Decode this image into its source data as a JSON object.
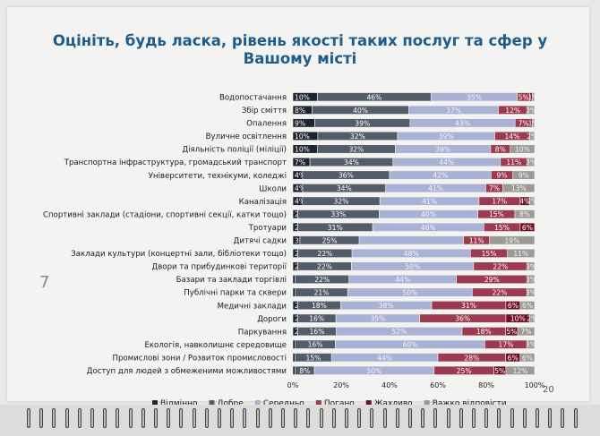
{
  "page": {
    "title": "Оцініть, будь ласка, рівень якості таких послуг та сфер у Вашому місті",
    "page_number": "20",
    "margin_mark": "7"
  },
  "colors": {
    "excellent": "#1e2430",
    "good": "#535d6a",
    "average": "#a9b1d5",
    "bad": "#9b3a50",
    "terrible": "#6e1226",
    "hard_to_say": "#9b9a98"
  },
  "chart_data": {
    "type": "bar",
    "orientation": "horizontal",
    "stacked": "percent",
    "title": "Оцініть, будь ласка, рівень якості таких послуг та сфер у Вашому місті",
    "xlim": [
      0,
      100
    ],
    "x_ticks": [
      "0%",
      "20%",
      "40%",
      "60%",
      "80%",
      "100%"
    ],
    "legend_position": "bottom",
    "categories": [
      "Водопостачання",
      "Збір сміття",
      "Опалення",
      "Вуличне освітлення",
      "Діяльність поліції (міліції)",
      "Транспортна інфраструктура, громадський транспорт",
      "Університети, технікуми, коледжі",
      "Школи",
      "Каналізація",
      "Спортивні заклади (стадіони, спортивні секції, катки тощо)",
      "Тротуари",
      "Дитячі садки",
      "Заклади культури (концертні зали, бібліотеки тощо)",
      "Двори та прибудинкові території",
      "Базари та заклади торгівлі",
      "Публічні парки та сквери",
      "Медичні заклади",
      "Дороги",
      "Паркування",
      "Екологія, навколишнє середовище",
      "Промислові зони / Розвиток промисловості",
      "Доступ для людей з обмеженими можливостями"
    ],
    "series": [
      {
        "name": "Відмінно",
        "color_key": "excellent",
        "values": [
          10,
          8,
          9,
          10,
          10,
          7,
          4,
          4,
          4,
          2,
          2,
          3,
          2,
          2,
          1,
          1,
          2,
          2,
          2,
          1,
          1,
          1
        ],
        "labels": [
          "10%",
          "8%",
          "9%",
          "10%",
          "10%",
          "7%",
          "4%",
          "4%",
          "4%",
          "2%",
          "2%",
          "3%",
          "2%",
          "2%",
          "1%",
          "1%",
          "2%",
          "2%",
          "2%",
          "1%",
          "1%",
          "1%"
        ]
      },
      {
        "name": "Добре",
        "color_key": "good",
        "values": [
          46,
          40,
          39,
          32,
          32,
          34,
          36,
          34,
          32,
          33,
          31,
          25,
          22,
          22,
          22,
          21,
          18,
          16,
          16,
          16,
          15,
          8
        ],
        "labels": [
          "46%",
          "40%",
          "39%",
          "32%",
          "32%",
          "34%",
          "36%",
          "34%",
          "32%",
          "33%",
          "31%",
          "25%",
          "22%",
          "22%",
          "22%",
          "21%",
          "18%",
          "16%",
          "16%",
          "16%",
          "15%",
          "8%"
        ]
      },
      {
        "name": "Середньо",
        "color_key": "average",
        "values": [
          35,
          37,
          43,
          39,
          39,
          44,
          42,
          41,
          41,
          40,
          46,
          44,
          48,
          50,
          44,
          50,
          38,
          35,
          52,
          60,
          44,
          50
        ],
        "labels": [
          "35%",
          "37%",
          "43%",
          "39%",
          "39%",
          "44%",
          "42%",
          "41%",
          "41%",
          "40%",
          "46%",
          "",
          "48%",
          "50%",
          "44%",
          "50%",
          "38%",
          "35%",
          "52%",
          "60%",
          "44%",
          "50%"
        ]
      },
      {
        "name": "Погано",
        "color_key": "bad",
        "values": [
          5,
          12,
          7,
          14,
          8,
          11,
          9,
          7,
          17,
          15,
          15,
          11,
          15,
          22,
          29,
          22,
          31,
          36,
          18,
          17,
          28,
          25
        ],
        "labels": [
          "5%",
          "12%",
          "7%",
          "14%",
          "8%",
          "11%",
          "9%",
          "7%",
          "17%",
          "15%",
          "15%",
          "11%",
          "15%",
          "22%",
          "29%",
          "22%",
          "31%",
          "36%",
          "18%",
          "17%",
          "28%",
          "25%"
        ]
      },
      {
        "name": "Жахливо",
        "color_key": "terrible",
        "values": [
          1,
          0,
          0,
          0,
          0,
          0,
          0,
          0,
          4,
          0,
          6,
          0,
          0,
          0,
          0,
          0,
          6,
          10,
          5,
          0,
          6,
          5
        ],
        "labels": [
          "",
          "",
          "",
          "",
          "",
          "",
          "",
          "",
          "4%",
          "",
          "6%",
          "",
          "",
          "",
          "",
          "",
          "6%",
          "10%",
          "5%",
          "",
          "6%",
          "5%"
        ]
      },
      {
        "name": "Важко відповісти",
        "color_key": "hard_to_say",
        "values": [
          1,
          3,
          1,
          2,
          10,
          3,
          9,
          13,
          2,
          8,
          0,
          19,
          11,
          3,
          3,
          3,
          6,
          2,
          7,
          3,
          6,
          12
        ],
        "labels": [
          "1%",
          "3%",
          "1%",
          "2%",
          "10%",
          "3%",
          "9%",
          "13%",
          "2%",
          "8%",
          "",
          "19%",
          "11%",
          "3%",
          "3%",
          "3%",
          "6%",
          "2%",
          "7%",
          "3%",
          "6%",
          "12%"
        ]
      }
    ]
  }
}
